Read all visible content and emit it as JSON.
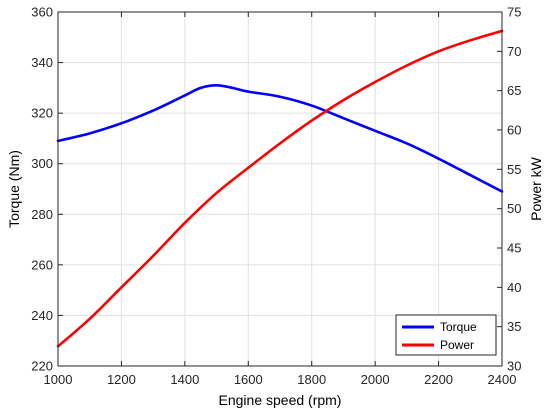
{
  "chart_data": {
    "type": "line",
    "xlabel": "Engine speed (rpm)",
    "ylabel_left": "Torque (Nm)",
    "ylabel_right": "Power kW",
    "xlim": [
      1000,
      2400
    ],
    "ylim_left": [
      220,
      360
    ],
    "ylim_right": [
      30,
      75
    ],
    "x_ticks": [
      1000,
      1200,
      1400,
      1600,
      1800,
      2000,
      2200,
      2400
    ],
    "y_ticks_left": [
      220,
      240,
      260,
      280,
      300,
      320,
      340,
      360
    ],
    "y_ticks_right": [
      30,
      35,
      40,
      45,
      50,
      55,
      60,
      65,
      70,
      75
    ],
    "grid": true,
    "legend_position": "bottom-right",
    "series": [
      {
        "name": "Torque",
        "axis": "left",
        "color": "#0000ff",
        "x": [
          1000,
          1100,
          1200,
          1300,
          1400,
          1450,
          1500,
          1550,
          1600,
          1700,
          1800,
          1900,
          2000,
          2100,
          2200,
          2300,
          2400
        ],
        "y": [
          309,
          312,
          316,
          321,
          327,
          330,
          331,
          330,
          328.5,
          326.5,
          323,
          318,
          313,
          308,
          302,
          295.5,
          289
        ]
      },
      {
        "name": "Power",
        "axis": "right",
        "color": "#ff0000",
        "x": [
          1000,
          1100,
          1200,
          1300,
          1400,
          1500,
          1600,
          1700,
          1800,
          1900,
          2000,
          2100,
          2200,
          2300,
          2400
        ],
        "y": [
          32.5,
          36,
          40,
          44,
          48.2,
          52,
          55.2,
          58.3,
          61.2,
          63.8,
          66.1,
          68.2,
          70,
          71.4,
          72.6
        ]
      }
    ]
  }
}
